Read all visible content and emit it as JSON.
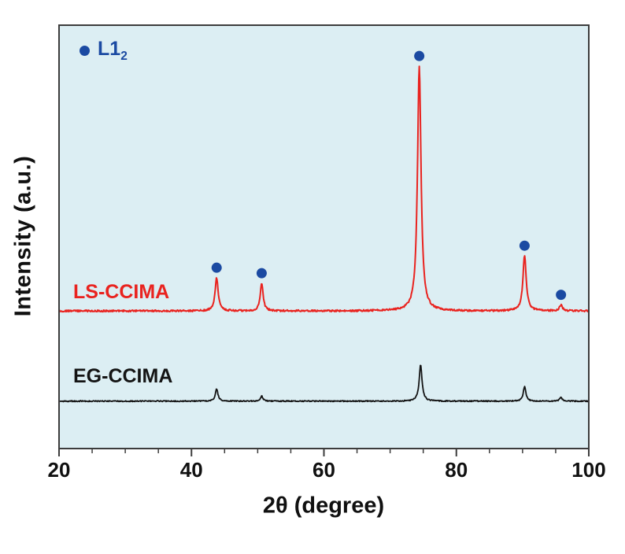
{
  "figure": {
    "background": "#ffffff"
  },
  "chart_data": {
    "type": "line",
    "chart_kind": "xrd-pattern",
    "title": "",
    "xlabel": "2θ (degree)",
    "ylabel": "Intensity (a.u.)",
    "xlim": [
      20,
      100
    ],
    "ylim": [
      0,
      1
    ],
    "x_major_ticks": [
      20,
      40,
      60,
      80,
      100
    ],
    "x_minor_tick_step": 5,
    "grid": false,
    "legend_position": "top-left",
    "plot_background": "#dceef3",
    "frame_color": "#3c3c3c",
    "series": [
      {
        "name": "LS-CCIMA",
        "color": "#e9231f",
        "baseline": 0.325,
        "peaks": [
          {
            "two_theta": 43.8,
            "height": 0.078,
            "width": 0.28
          },
          {
            "two_theta": 50.6,
            "height": 0.065,
            "width": 0.26
          },
          {
            "two_theta": 74.4,
            "height": 0.578,
            "width": 0.32
          },
          {
            "two_theta": 90.3,
            "height": 0.13,
            "width": 0.3
          },
          {
            "two_theta": 95.8,
            "height": 0.014,
            "width": 0.26
          }
        ]
      },
      {
        "name": "EG-CCIMA",
        "color": "#141414",
        "baseline": 0.112,
        "peaks": [
          {
            "two_theta": 43.8,
            "height": 0.028,
            "width": 0.24
          },
          {
            "two_theta": 50.6,
            "height": 0.012,
            "width": 0.22
          },
          {
            "two_theta": 74.6,
            "height": 0.085,
            "width": 0.26
          },
          {
            "two_theta": 90.3,
            "height": 0.034,
            "width": 0.24
          },
          {
            "two_theta": 95.8,
            "height": 0.009,
            "width": 0.22
          }
        ]
      }
    ],
    "phase_markers": {
      "label_main": "L1",
      "label_sub": "2",
      "color": "#1b4aa2",
      "positions": [
        43.8,
        50.6,
        74.4,
        90.3,
        95.8
      ]
    }
  }
}
